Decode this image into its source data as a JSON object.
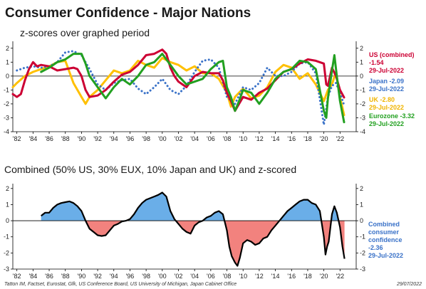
{
  "title": "Consumer Confidence - Major Nations",
  "source": "Tatton IM, Factset, Eurostat, Gfk, US Conference Board, US University of Michigan, Japan Cabinet Office",
  "date": "29/07/2022",
  "colors": {
    "us": "#cc0033",
    "japan": "#3a72c8",
    "uk": "#ffc000",
    "eurozone": "#22a020",
    "positive_fill": "#6aaee8",
    "negative_fill": "#f2827e",
    "combined_line": "#000000",
    "combined_label": "#3a72c8"
  },
  "x_ticks": [
    "'82",
    "'84",
    "'86",
    "'88",
    "'90",
    "'92",
    "'94",
    "'96",
    "'98",
    "'00",
    "'02",
    "'04",
    "'06",
    "'08",
    "'10",
    "'12",
    "'14",
    "'16",
    "'18",
    "'20",
    "'22"
  ],
  "chart_data": [
    {
      "type": "line",
      "title": "z-scores over graphed period",
      "xlim": [
        1981.5,
        2024
      ],
      "ylim": [
        -4,
        2.5
      ],
      "yticks": [
        "2",
        "1",
        "0",
        "-1",
        "-2",
        "-3",
        "-4"
      ],
      "grid": false,
      "series": [
        {
          "name": "US (combined)",
          "label_lines": [
            "US (combined)",
            "-1.54",
            "29-Jul-2022"
          ],
          "color_key": "us",
          "style": "solid",
          "x": [
            1981.5,
            1982,
            1982.5,
            1983,
            1983.5,
            1984,
            1984.5,
            1985,
            1986,
            1987,
            1988,
            1989,
            1989.5,
            1990,
            1990.5,
            1991,
            1992,
            1993,
            1994,
            1995,
            1996,
            1997,
            1998,
            1999,
            2000,
            2000.5,
            2001,
            2001.5,
            2002,
            2003,
            2004,
            2005,
            2006,
            2007,
            2007.5,
            2008,
            2008.5,
            2009,
            2009.5,
            2010,
            2011,
            2012,
            2013,
            2014,
            2015,
            2016,
            2017,
            2018,
            2019,
            2020,
            2020.3,
            2020.5,
            2021,
            2021.5,
            2022,
            2022.5
          ],
          "y": [
            -1.3,
            -1.5,
            -1.3,
            -0.3,
            0.5,
            1.0,
            0.7,
            0.8,
            0.7,
            0.4,
            0.5,
            0.6,
            0.5,
            0.0,
            -1.0,
            -1.5,
            -1.4,
            -1.0,
            -0.4,
            0.1,
            0.3,
            0.8,
            1.5,
            1.6,
            1.9,
            1.6,
            0.6,
            0.0,
            -0.4,
            -0.8,
            0.0,
            0.3,
            0.2,
            0.2,
            -0.3,
            -1.2,
            -1.8,
            -2.5,
            -2.0,
            -1.5,
            -1.7,
            -1.2,
            -0.9,
            -0.3,
            0.3,
            0.5,
            0.9,
            1.2,
            1.1,
            0.9,
            -0.6,
            -0.7,
            0.6,
            0.0,
            -1.0,
            -1.54
          ]
        },
        {
          "name": "Japan",
          "label_lines": [
            "Japan -2.09",
            "29-Jul-2022"
          ],
          "color_key": "japan",
          "style": "dotted",
          "x": [
            1982,
            1983,
            1984,
            1985,
            1986,
            1987,
            1988,
            1989,
            1990,
            1991,
            1992,
            1993,
            1994,
            1995,
            1996,
            1997,
            1998,
            1999,
            2000,
            2001,
            2002,
            2003,
            2004,
            2005,
            2006,
            2007,
            2008,
            2009,
            2010,
            2011,
            2012,
            2013,
            2014,
            2015,
            2016,
            2017,
            2018,
            2019,
            2020,
            2020.5,
            2021,
            2021.5,
            2022,
            2022.5
          ],
          "y": [
            0.4,
            0.6,
            0.7,
            0.6,
            0.7,
            1.0,
            1.7,
            1.8,
            1.5,
            0.5,
            -0.6,
            -1.0,
            -0.5,
            -0.3,
            -0.2,
            -0.9,
            -1.3,
            -0.8,
            -0.2,
            -1.0,
            -1.3,
            -0.7,
            0.3,
            1.1,
            1.2,
            0.6,
            -1.5,
            -2.0,
            -0.8,
            -1.0,
            -0.5,
            0.6,
            0.0,
            0.0,
            0.3,
            0.9,
            1.0,
            0.2,
            -3.5,
            -1.5,
            -0.7,
            -0.5,
            -1.2,
            -2.09
          ]
        },
        {
          "name": "UK",
          "label_lines": [
            "UK -2.80",
            "29-Jul-2022"
          ],
          "color_key": "uk",
          "style": "solid",
          "x": [
            1981.5,
            1982,
            1983,
            1984,
            1985,
            1986,
            1987,
            1988,
            1989,
            1990,
            1990.5,
            1991,
            1992,
            1993,
            1994,
            1995,
            1996,
            1997,
            1998,
            1999,
            2000,
            2001,
            2002,
            2003,
            2004,
            2005,
            2006,
            2007,
            2008,
            2008.5,
            2009,
            2010,
            2011,
            2012,
            2013,
            2014,
            2015,
            2016,
            2017,
            2018,
            2019,
            2020,
            2020.5,
            2021,
            2021.5,
            2022,
            2022.5
          ],
          "y": [
            -0.8,
            -0.5,
            0.0,
            0.3,
            0.5,
            0.7,
            1.0,
            1.1,
            -0.5,
            -1.5,
            -2.0,
            -1.5,
            -1.0,
            -0.3,
            0.4,
            0.2,
            0.4,
            1.1,
            0.8,
            0.6,
            1.3,
            1.0,
            0.8,
            0.4,
            0.7,
            0.2,
            0.2,
            -0.2,
            -1.2,
            -2.2,
            -1.5,
            -0.9,
            -1.6,
            -1.4,
            -0.8,
            0.3,
            0.8,
            0.6,
            -0.2,
            0.2,
            -0.6,
            -1.8,
            -1.0,
            -0.6,
            0.3,
            -1.5,
            -2.8
          ]
        },
        {
          "name": "Eurozone",
          "label_lines": [
            "Eurozone -3.32",
            "29-Jul-2022"
          ],
          "color_key": "eurozone",
          "style": "solid",
          "x": [
            1985,
            1986,
            1987,
            1988,
            1989,
            1990,
            1990.5,
            1991,
            1992,
            1993,
            1994,
            1995,
            1996,
            1997,
            1998,
            1999,
            2000,
            2001,
            2002,
            2003,
            2004,
            2005,
            2006,
            2007,
            2007.5,
            2008,
            2008.5,
            2009,
            2009.5,
            2010,
            2011,
            2012,
            2013,
            2014,
            2015,
            2016,
            2017,
            2018,
            2019,
            2020,
            2020.3,
            2020.5,
            2021,
            2021.3,
            2021.6,
            2022,
            2022.5
          ],
          "y": [
            0.3,
            0.6,
            1.0,
            1.2,
            1.6,
            1.6,
            0.9,
            0.0,
            -0.8,
            -1.6,
            -0.8,
            -0.2,
            -0.6,
            0.0,
            0.8,
            1.0,
            1.6,
            0.8,
            0.0,
            -0.6,
            -0.4,
            -0.2,
            0.5,
            1.0,
            1.1,
            -0.8,
            -1.5,
            -2.5,
            -1.8,
            -1.0,
            -1.2,
            -2.0,
            -1.2,
            -0.2,
            0.3,
            0.5,
            1.1,
            1.0,
            0.5,
            -2.5,
            -3.0,
            -1.6,
            0.4,
            1.5,
            0.0,
            -1.8,
            -3.32
          ]
        }
      ]
    },
    {
      "type": "area",
      "title": "Combined (50% US, 30% EUX, 10% Japan and UK) and z-scored",
      "xlim": [
        1981.5,
        2024
      ],
      "ylim": [
        -3,
        2.3
      ],
      "yticks": [
        "2",
        "1",
        "0",
        "-1",
        "-2",
        "-3"
      ],
      "grid": false,
      "series": [
        {
          "name": "Combined consumer confidence",
          "label_lines": [
            "Combined",
            "consumer",
            "confidence",
            "-2.36",
            "29-Jul-2022"
          ],
          "color_key": "combined_line",
          "x": [
            1985,
            1985.5,
            1986,
            1986.5,
            1987,
            1987.5,
            1988,
            1988.5,
            1989,
            1989.5,
            1990,
            1990.5,
            1991,
            1991.5,
            1992,
            1992.5,
            1993,
            1993.5,
            1994,
            1994.5,
            1995,
            1995.5,
            1996,
            1996.5,
            1997,
            1997.5,
            1998,
            1998.5,
            1999,
            1999.5,
            2000,
            2000.5,
            2001,
            2001.5,
            2002,
            2002.5,
            2003,
            2003.5,
            2004,
            2004.5,
            2005,
            2005.5,
            2006,
            2006.5,
            2007,
            2007.5,
            2008,
            2008.3,
            2008.6,
            2009,
            2009.3,
            2009.6,
            2010,
            2010.5,
            2011,
            2011.5,
            2012,
            2012.5,
            2013,
            2013.5,
            2014,
            2014.5,
            2015,
            2015.5,
            2016,
            2016.5,
            2017,
            2017.5,
            2018,
            2018.5,
            2019,
            2019.5,
            2020,
            2020.2,
            2020.4,
            2020.6,
            2021,
            2021.3,
            2021.6,
            2022,
            2022.3,
            2022.55
          ],
          "y": [
            0.3,
            0.5,
            0.5,
            0.8,
            1.0,
            1.1,
            1.15,
            1.2,
            1.1,
            0.9,
            0.6,
            0.0,
            -0.5,
            -0.7,
            -0.9,
            -0.95,
            -0.9,
            -0.6,
            -0.3,
            -0.2,
            -0.05,
            0.0,
            0.1,
            0.4,
            0.8,
            1.1,
            1.3,
            1.4,
            1.5,
            1.6,
            1.75,
            1.5,
            0.6,
            0.1,
            -0.2,
            -0.5,
            -0.7,
            -0.8,
            -0.3,
            -0.1,
            0.0,
            0.2,
            0.3,
            0.5,
            0.6,
            0.4,
            -0.6,
            -1.6,
            -2.2,
            -2.6,
            -2.8,
            -2.3,
            -1.4,
            -1.2,
            -1.3,
            -1.5,
            -1.4,
            -1.1,
            -1.0,
            -0.6,
            -0.3,
            0.0,
            0.3,
            0.6,
            0.8,
            1.0,
            1.2,
            1.3,
            1.3,
            1.1,
            1.0,
            0.6,
            -1.0,
            -2.1,
            -1.6,
            -1.3,
            0.4,
            0.9,
            0.5,
            -0.4,
            -1.6,
            -2.36
          ]
        }
      ]
    }
  ]
}
